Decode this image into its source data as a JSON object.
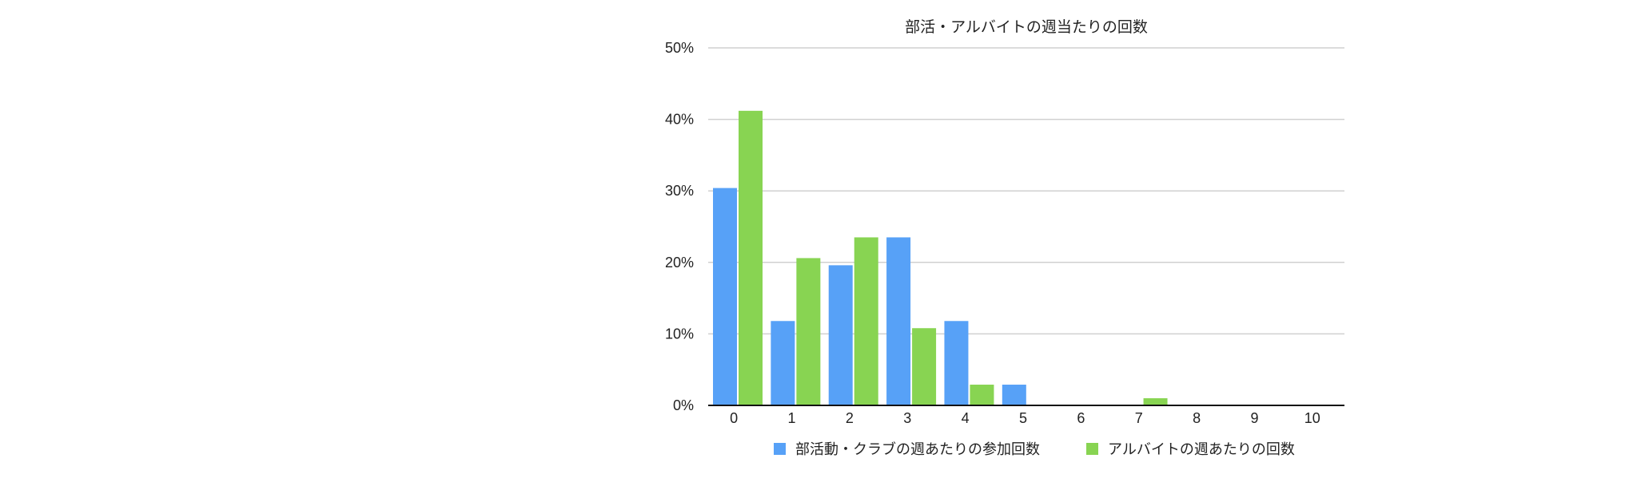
{
  "chart_data": {
    "type": "bar",
    "title": "部活・アルバイトの週当たりの回数",
    "xlabel": "",
    "ylabel": "",
    "ylim": [
      0,
      50
    ],
    "yticks": [
      "0%",
      "10%",
      "20%",
      "30%",
      "40%",
      "50%"
    ],
    "ytick_values": [
      0,
      10,
      20,
      30,
      40,
      50
    ],
    "categories": [
      "0",
      "1",
      "2",
      "3",
      "4",
      "5",
      "6",
      "7",
      "8",
      "9",
      "10"
    ],
    "grid": true,
    "legend_position": "bottom",
    "series": [
      {
        "name": "部活動・クラブの週あたりの参加回数",
        "color": "#57A1F7",
        "values": [
          30.4,
          11.8,
          19.6,
          23.5,
          11.8,
          2.9,
          0,
          0,
          0,
          0,
          0
        ]
      },
      {
        "name": "アルバイトの週あたりの回数",
        "color": "#88D452",
        "values": [
          41.2,
          20.6,
          23.5,
          10.8,
          2.9,
          0,
          0,
          1.0,
          0,
          0,
          0
        ]
      }
    ]
  }
}
